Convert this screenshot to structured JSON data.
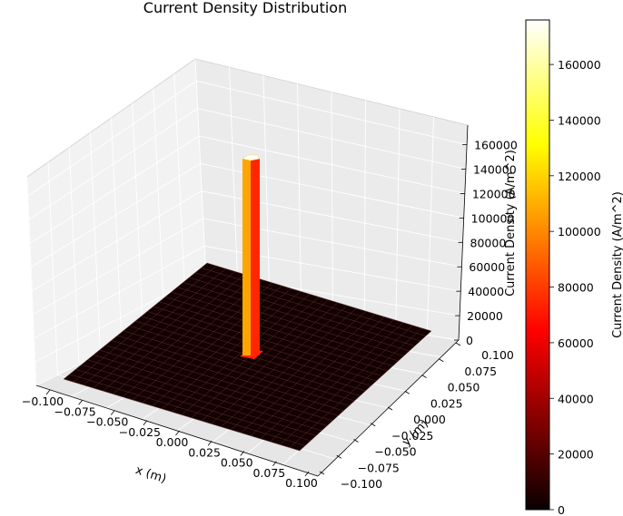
{
  "chart_data": {
    "type": "surface3d",
    "title": "Current Density Distribution",
    "xlabel": "x (m)",
    "ylabel": "y (m)",
    "zlabel": "Current Density (A/m^2)",
    "xlim": [
      -0.1,
      0.1
    ],
    "ylim": [
      -0.1,
      0.1
    ],
    "zlim": [
      0,
      176000
    ],
    "x_ticks": [
      "−0.100",
      "−0.075",
      "−0.050",
      "−0.025",
      "0.000",
      "0.025",
      "0.050",
      "0.075",
      "0.100"
    ],
    "y_ticks": [
      "−0.100",
      "−0.075",
      "−0.050",
      "−0.025",
      "0.000",
      "0.025",
      "0.050",
      "0.075",
      "0.100"
    ],
    "z_ticks": [
      "0",
      "20000",
      "40000",
      "60000",
      "80000",
      "100000",
      "120000",
      "140000",
      "160000"
    ],
    "surface": {
      "background_value": 0,
      "peak": {
        "x": 0.0,
        "y": 0.0,
        "value": 176000,
        "radius": 0.004
      }
    },
    "colormap": "hot",
    "colorbar": {
      "label": "Current Density (A/m^2)",
      "min": 0,
      "max": 176000,
      "ticks": [
        "0",
        "20000",
        "40000",
        "60000",
        "80000",
        "100000",
        "120000",
        "140000",
        "160000"
      ]
    },
    "grid": true
  }
}
